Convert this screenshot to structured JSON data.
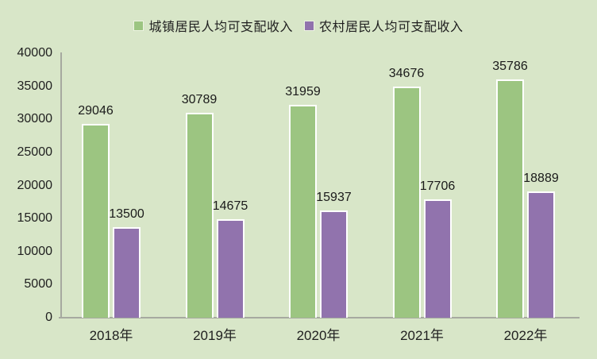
{
  "chart_data": {
    "type": "bar",
    "title": "",
    "categories": [
      "2018年",
      "2019年",
      "2020年",
      "2021年",
      "2022年"
    ],
    "series": [
      {
        "name": "城镇居民人均可支配收入",
        "color": "#9cc581",
        "values": [
          29046,
          30789,
          31959,
          34676,
          35786
        ]
      },
      {
        "name": "农村居民人均可支配收入",
        "color": "#9173ad",
        "values": [
          13500,
          14675,
          15937,
          17706,
          18889
        ]
      }
    ],
    "yticks": [
      0,
      5000,
      10000,
      15000,
      20000,
      25000,
      30000,
      35000,
      40000
    ],
    "ylim": [
      0,
      40000
    ],
    "xlabel": "",
    "ylabel": "",
    "grid": false,
    "legend_position": "top",
    "data_labels": true,
    "colors": {
      "background": "#d8e6c8",
      "axis": "#a6a9a0",
      "bar_border": "#ffffff",
      "text": "#1f1f1f"
    }
  }
}
